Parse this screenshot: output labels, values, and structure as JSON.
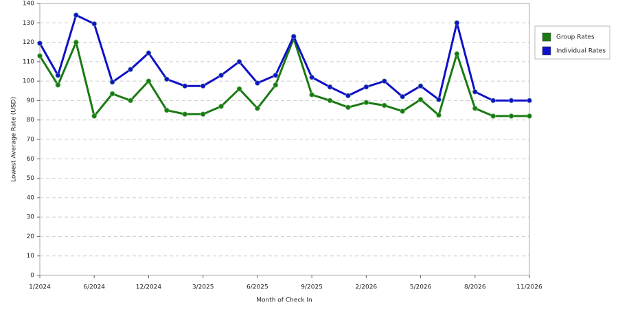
{
  "chart_data": {
    "type": "line",
    "categories": [
      "1/2024",
      null,
      null,
      "6/2024",
      null,
      null,
      "12/2024",
      null,
      null,
      "3/2025",
      null,
      null,
      "6/2025",
      null,
      null,
      "9/2025",
      null,
      null,
      "2/2026",
      null,
      null,
      "5/2026",
      null,
      null,
      "8/2026",
      null,
      null,
      "11/2026"
    ],
    "series": [
      {
        "name": "Group Rates",
        "color": "#1a7a12",
        "values": [
          113,
          98,
          120,
          82,
          93.5,
          90,
          100,
          85,
          83,
          83,
          87,
          96,
          86,
          98,
          122,
          93,
          90,
          86.5,
          89,
          87.5,
          84.5,
          90.5,
          82.5,
          114,
          86,
          82,
          82,
          82
        ]
      },
      {
        "name": "Individual Rates",
        "color": "#1010c8",
        "values": [
          119.5,
          103,
          134,
          129.5,
          99.5,
          106,
          114.5,
          101,
          97.5,
          97.5,
          103,
          110,
          99,
          103,
          123,
          102,
          97,
          92.5,
          97,
          100,
          92,
          97.5,
          90.5,
          130,
          94.5,
          90,
          90,
          90
        ]
      }
    ],
    "ylabel": "Lowest Average Rate (USD)",
    "xlabel": "Month of Check In",
    "ylim": [
      0,
      140
    ],
    "yticks": [
      0,
      10,
      20,
      30,
      40,
      50,
      60,
      70,
      80,
      90,
      100,
      110,
      120,
      130,
      140
    ],
    "grid": true,
    "legend": "right"
  }
}
